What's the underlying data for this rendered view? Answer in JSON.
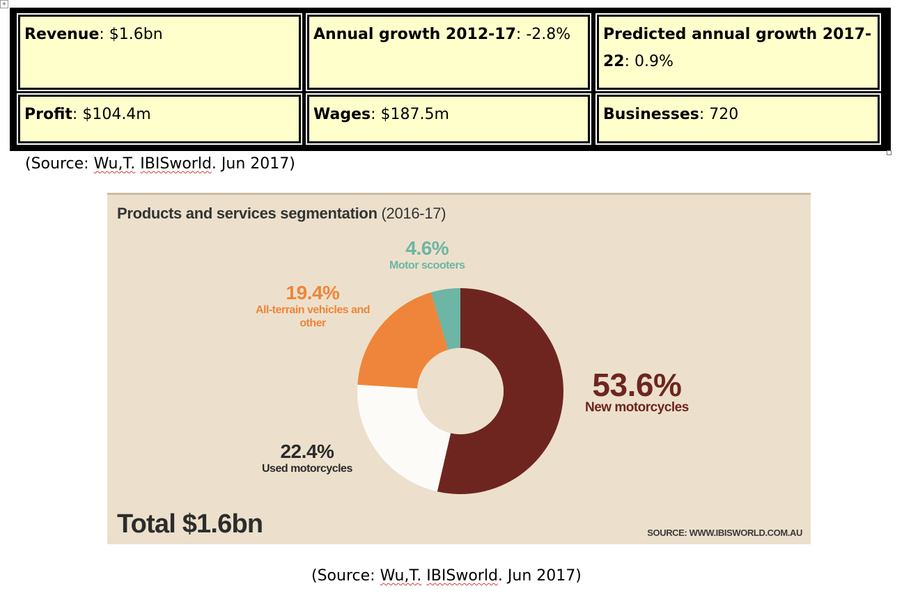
{
  "stats": [
    {
      "label": "Revenue",
      "value": "$1.6bn"
    },
    {
      "label": "Annual growth 2012-17",
      "value": "-2.8%"
    },
    {
      "label": "Predicted annual growth 2017-22",
      "value": "0.9%"
    },
    {
      "label": "Profit",
      "value": "$104.4m"
    },
    {
      "label": "Wages",
      "value": "$187.5m"
    },
    {
      "label": "Businesses",
      "value": "720"
    }
  ],
  "source": {
    "open": "(Source: ",
    "author": "Wu,T.",
    "publisher": "IBISworld",
    "date": ". Jun 2017)"
  },
  "figure": {
    "title": "Products and services segmentation",
    "period": "(2016-17)",
    "total": "Total $1.6bn",
    "credit": "SOURCE: WWW.IBISWORLD.COM.AU"
  },
  "chart_data": {
    "type": "pie",
    "title": "Products and services segmentation (2016-17)",
    "hole": true,
    "segments": [
      {
        "name": "New motorcycles",
        "value": 53.6,
        "label": "53.6%",
        "color": "#6e2520",
        "text_color": "#6e2520"
      },
      {
        "name": "Used motorcycles",
        "value": 22.4,
        "label": "22.4%",
        "color": "#fdfbf7",
        "text_color": "#2a2a2a"
      },
      {
        "name": "All-terrain vehicles and other",
        "value": 19.4,
        "label": "19.4%",
        "color": "#ef853a",
        "text_color": "#ef853a"
      },
      {
        "name": "Motor scooters",
        "value": 4.6,
        "label": "4.6%",
        "color": "#6db5a4",
        "text_color": "#6db5a4"
      }
    ],
    "annotation": "Total $1.6bn"
  }
}
